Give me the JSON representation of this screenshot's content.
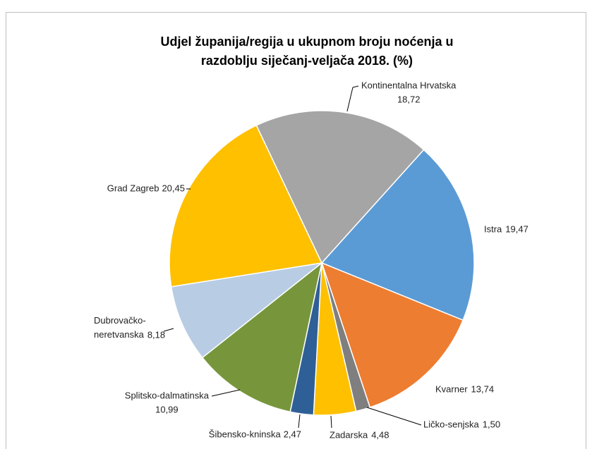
{
  "chart_data": {
    "type": "pie",
    "title": [
      "Udjel županija/regija u ukupnom broju noćenja u",
      "razdoblju siječanj-veljača 2018. (%)"
    ],
    "categories": [
      "Istra",
      "Kvarner",
      "Ličko-senjska",
      "Zadarska",
      "Šibensko-kninska",
      "Splitsko-dalmatinska",
      "Dubrovačko-neretvanska",
      "Grad Zagreb",
      "Kontinentalna Hrvatska"
    ],
    "values": [
      19.47,
      13.74,
      1.5,
      4.48,
      2.47,
      10.99,
      8.18,
      20.45,
      18.72
    ],
    "value_labels": [
      "19,47",
      "13,74",
      "1,50",
      "4,48",
      "2,47",
      "10,99",
      "8,18",
      "20,45",
      "18,72"
    ],
    "colors": [
      "#5b9bd5",
      "#ed7d31",
      "#7f7f7f",
      "#ffc000",
      "#2f5f97",
      "#77963c",
      "#b8cce4",
      "#ffc000",
      "#a5a5a5"
    ]
  }
}
